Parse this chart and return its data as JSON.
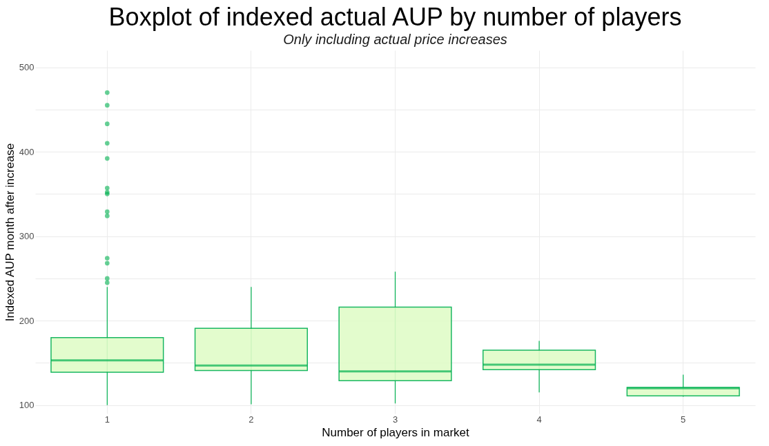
{
  "chart_data": {
    "type": "box",
    "title": "Boxplot of indexed actual AUP by number of players",
    "subtitle": "Only including actual price increases",
    "xlabel": "Number of players in market",
    "ylabel": "Indexed AUP month after increase",
    "categories": [
      "1",
      "2",
      "3",
      "4",
      "5"
    ],
    "series": [
      {
        "color": "#00b050",
        "boxes": [
          {
            "low": 100,
            "q1": 139,
            "median": 153,
            "q3": 180,
            "high": 240,
            "outliers": [
              470,
              455,
              433,
              410,
              392,
              357,
              352,
              350,
              329,
              324,
              274,
              268,
              250,
              245
            ]
          },
          {
            "low": 101,
            "q1": 141,
            "median": 147,
            "q3": 191,
            "high": 240
          },
          {
            "low": 102,
            "q1": 129,
            "median": 140,
            "q3": 216,
            "high": 258
          },
          {
            "low": 115,
            "q1": 142,
            "median": 148,
            "q3": 165,
            "high": 176
          },
          {
            "low": 110,
            "q1": 111,
            "median": 120,
            "q3": 121,
            "high": 136
          }
        ]
      }
    ],
    "ylim": [
      90,
      520
    ],
    "yticks": [
      100,
      {
        "value": 150,
        "label": null
      },
      200,
      {
        "value": 250,
        "label": null
      },
      300,
      {
        "value": 350,
        "label": null
      },
      400,
      {
        "value": 450,
        "label": null
      },
      500
    ],
    "grid": true
  }
}
